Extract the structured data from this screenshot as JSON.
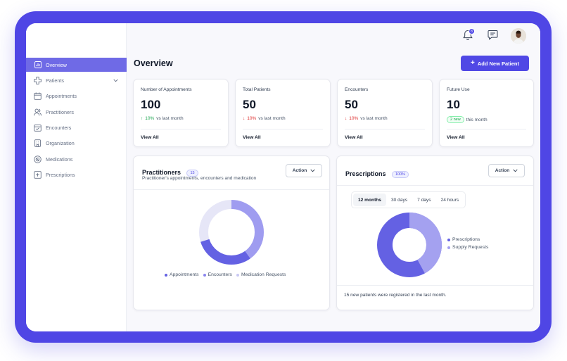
{
  "sidebar": {
    "items": [
      {
        "label": "Overview",
        "icon": "chart-icon",
        "active": true
      },
      {
        "label": "Patients",
        "icon": "medical-cross-icon",
        "expandable": true
      },
      {
        "label": "Appointments",
        "icon": "calendar-icon"
      },
      {
        "label": "Practitioners",
        "icon": "users-icon"
      },
      {
        "label": "Encounters",
        "icon": "calendar-check-icon"
      },
      {
        "label": "Organization",
        "icon": "building-icon"
      },
      {
        "label": "Medications",
        "icon": "pill-icon"
      },
      {
        "label": "Prescriptions",
        "icon": "prescription-icon"
      }
    ]
  },
  "topbar": {
    "notification_count": "8"
  },
  "page": {
    "title": "Overview",
    "add_button_label": "Add New Patient"
  },
  "stats": [
    {
      "label": "Number of Appointments",
      "value": "100",
      "delta": "10%",
      "direction": "up",
      "delta_suffix": "vs last month",
      "link": "View All"
    },
    {
      "label": "Total Patients",
      "value": "50",
      "delta": "10%",
      "direction": "down",
      "delta_suffix": "vs last month",
      "link": "View All"
    },
    {
      "label": "Encounters",
      "value": "50",
      "delta": "10%",
      "direction": "down",
      "delta_suffix": "vs last month",
      "link": "View All"
    },
    {
      "label": "Future Use",
      "value": "10",
      "badge": "2 new",
      "delta_suffix": "this month",
      "link": "View All"
    }
  ],
  "practitioners": {
    "title": "Practitioners",
    "count": "15",
    "subtitle": "Practitioner's appointments, encounters and medication",
    "action_label": "Action",
    "legend": [
      "Appointments",
      "Encounters",
      "Medication Requests"
    ]
  },
  "prescriptions": {
    "title": "Prescriptions",
    "count": "100%",
    "action_label": "Action",
    "tabs": [
      "12 months",
      "30 days",
      "7 days",
      "24 hours"
    ],
    "active_tab": "12 months",
    "legend": [
      "Prescriptions",
      "Supply Requests"
    ],
    "footer": "15 new patients were registered in the last month."
  },
  "colors": {
    "accent": "#4f46e5",
    "sidebar_active": "#6f6ae6",
    "donut_dark": "#6461e3",
    "donut_mid": "#9f9cf0",
    "donut_light": "#e6e6f7"
  }
}
